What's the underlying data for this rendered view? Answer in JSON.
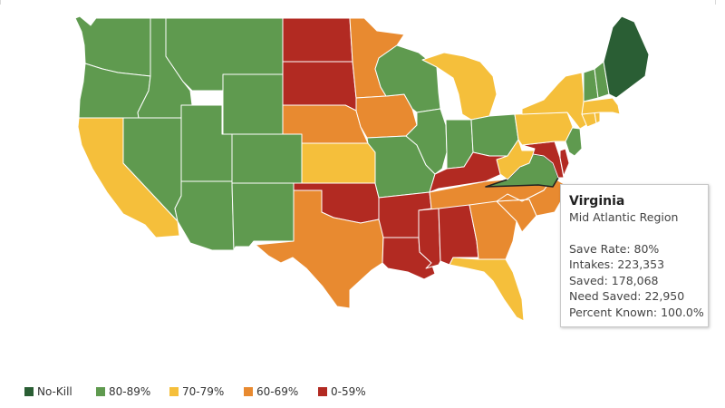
{
  "colors": {
    "no_kill": "#2a5e34",
    "b80_89": "#5f9a4f",
    "b70_79": "#f5bf3b",
    "b60_69": "#e88a30",
    "b0_59": "#b22a22",
    "highlight_stroke": "#222222"
  },
  "map": {
    "highlighted_state": "Virginia",
    "states": [
      {
        "name": "Washington",
        "band": "b80_89"
      },
      {
        "name": "Oregon",
        "band": "b80_89"
      },
      {
        "name": "California",
        "band": "b70_79"
      },
      {
        "name": "Nevada",
        "band": "b80_89"
      },
      {
        "name": "Idaho",
        "band": "b80_89"
      },
      {
        "name": "Montana",
        "band": "b80_89"
      },
      {
        "name": "Wyoming",
        "band": "b80_89"
      },
      {
        "name": "Utah",
        "band": "b80_89"
      },
      {
        "name": "Arizona",
        "band": "b80_89"
      },
      {
        "name": "Colorado",
        "band": "b80_89"
      },
      {
        "name": "New Mexico",
        "band": "b80_89"
      },
      {
        "name": "North Dakota",
        "band": "b0_59"
      },
      {
        "name": "South Dakota",
        "band": "b0_59"
      },
      {
        "name": "Nebraska",
        "band": "b60_69"
      },
      {
        "name": "Kansas",
        "band": "b70_79"
      },
      {
        "name": "Oklahoma",
        "band": "b0_59"
      },
      {
        "name": "Texas",
        "band": "b60_69"
      },
      {
        "name": "Minnesota",
        "band": "b60_69"
      },
      {
        "name": "Iowa",
        "band": "b60_69"
      },
      {
        "name": "Missouri",
        "band": "b80_89"
      },
      {
        "name": "Arkansas",
        "band": "b0_59"
      },
      {
        "name": "Louisiana",
        "band": "b0_59"
      },
      {
        "name": "Wisconsin",
        "band": "b80_89"
      },
      {
        "name": "Illinois",
        "band": "b80_89"
      },
      {
        "name": "Michigan",
        "band": "b70_79"
      },
      {
        "name": "Indiana",
        "band": "b80_89"
      },
      {
        "name": "Ohio",
        "band": "b80_89"
      },
      {
        "name": "Kentucky",
        "band": "b0_59"
      },
      {
        "name": "Tennessee",
        "band": "b60_69"
      },
      {
        "name": "Mississippi",
        "band": "b0_59"
      },
      {
        "name": "Alabama",
        "band": "b0_59"
      },
      {
        "name": "Georgia",
        "band": "b60_69"
      },
      {
        "name": "Florida",
        "band": "b70_79"
      },
      {
        "name": "South Carolina",
        "band": "b60_69"
      },
      {
        "name": "North Carolina",
        "band": "b60_69"
      },
      {
        "name": "Virginia",
        "band": "b80_89"
      },
      {
        "name": "West Virginia",
        "band": "b70_79"
      },
      {
        "name": "Maryland",
        "band": "b0_59"
      },
      {
        "name": "Delaware",
        "band": "b0_59"
      },
      {
        "name": "New Jersey",
        "band": "b80_89"
      },
      {
        "name": "Pennsylvania",
        "band": "b70_79"
      },
      {
        "name": "New York",
        "band": "b70_79"
      },
      {
        "name": "Connecticut",
        "band": "b70_79"
      },
      {
        "name": "Rhode Island",
        "band": "b70_79"
      },
      {
        "name": "Massachusetts",
        "band": "b70_79"
      },
      {
        "name": "Vermont",
        "band": "b80_89"
      },
      {
        "name": "New Hampshire",
        "band": "b80_89"
      },
      {
        "name": "Maine",
        "band": "no_kill"
      }
    ]
  },
  "tooltip": {
    "title": "Virginia",
    "region": "Mid Atlantic Region",
    "save_rate": "Save Rate: 80%",
    "intakes": "Intakes: 223,353",
    "saved": "Saved: 178,068",
    "need_saved": "Need Saved: 22,950",
    "percent_known": "Percent Known: 100.0%"
  },
  "legend": {
    "items": [
      {
        "label": "No-Kill",
        "band": "no_kill"
      },
      {
        "label": "80-89%",
        "band": "b80_89"
      },
      {
        "label": "70-79%",
        "band": "b70_79"
      },
      {
        "label": "60-69%",
        "band": "b60_69"
      },
      {
        "label": "0-59%",
        "band": "b0_59"
      }
    ]
  }
}
